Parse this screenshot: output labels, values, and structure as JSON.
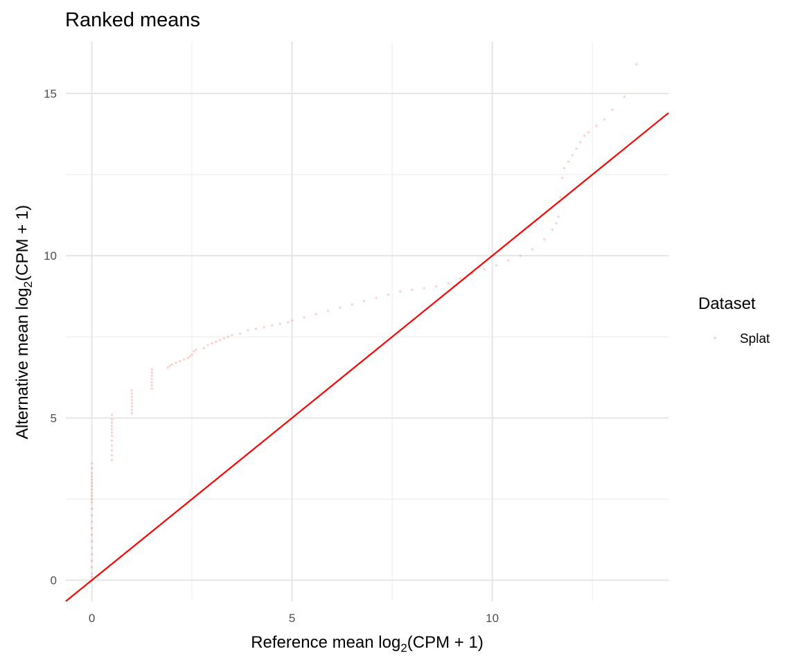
{
  "chart_data": {
    "type": "scatter",
    "title": "Ranked means",
    "xlabel": {
      "prefix": "Reference mean log",
      "sub": "2",
      "suffix": "(CPM + 1)"
    },
    "ylabel": {
      "prefix": "Alternative mean log",
      "sub": "2",
      "suffix": "(CPM + 1)"
    },
    "xlim": [
      -0.65,
      14.4
    ],
    "ylim": [
      -0.65,
      16.6
    ],
    "x_ticks": [
      0,
      5,
      10
    ],
    "y_ticks": [
      0,
      5,
      10,
      15
    ],
    "x_tick_labels": [
      "0",
      "5",
      "10"
    ],
    "y_tick_labels": [
      "0",
      "5",
      "10",
      "15"
    ],
    "x_minor": [
      2.5,
      7.5,
      12.5
    ],
    "y_minor": [
      2.5,
      7.5,
      12.5
    ],
    "grid": true,
    "legend": {
      "title": "Dataset",
      "position": "right",
      "entries": [
        "Splat"
      ]
    },
    "point_color": "#F8766D",
    "reference_line": {
      "slope": 1,
      "intercept": 0,
      "color": "#FF0000"
    },
    "series": [
      {
        "name": "Splat",
        "x": [
          0,
          0,
          0,
          0,
          0,
          0,
          0,
          0,
          0,
          0,
          0,
          0,
          0,
          0,
          0,
          0,
          0,
          0,
          0,
          0,
          0,
          0,
          0,
          0,
          0,
          0.5,
          0.5,
          0.5,
          0.5,
          0.5,
          0.5,
          0.5,
          0.5,
          0.5,
          0.5,
          0.5,
          0.5,
          1,
          1,
          1,
          1,
          1,
          1,
          1,
          1,
          1.5,
          1.5,
          1.5,
          1.5,
          1.5,
          1.5,
          1.5,
          1.9,
          1.95,
          2.0,
          2.1,
          2.2,
          2.3,
          2.4,
          2.45,
          2.5,
          2.55,
          2.6,
          2.8,
          2.9,
          3.0,
          3.1,
          3.2,
          3.3,
          3.4,
          3.5,
          3.7,
          3.9,
          4.1,
          4.3,
          4.5,
          4.7,
          4.9,
          5.0,
          5.3,
          5.6,
          5.9,
          6.2,
          6.5,
          6.8,
          7.1,
          7.4,
          7.7,
          8.0,
          8.3,
          8.6,
          8.9,
          9.2,
          9.5,
          9.8,
          10.1,
          10.4,
          10.7,
          11.0,
          11.3,
          11.5,
          11.6,
          11.65,
          11.7,
          11.75,
          11.8,
          11.9,
          12.0,
          12.1,
          12.2,
          12.3,
          12.4,
          12.6,
          12.8,
          13.0,
          13.3,
          13.6
        ],
        "y": [
          0,
          0.1,
          0.2,
          0.4,
          0.6,
          0.8,
          1.0,
          1.2,
          1.4,
          1.6,
          1.8,
          2.0,
          2.2,
          2.4,
          2.5,
          2.6,
          2.7,
          2.8,
          2.9,
          3.0,
          3.1,
          3.2,
          3.3,
          3.45,
          3.6,
          3.7,
          3.85,
          4.0,
          4.15,
          4.3,
          4.45,
          4.55,
          4.65,
          4.75,
          4.85,
          4.95,
          5.1,
          5.15,
          5.25,
          5.35,
          5.45,
          5.55,
          5.65,
          5.75,
          5.85,
          5.9,
          6.0,
          6.1,
          6.2,
          6.3,
          6.4,
          6.5,
          6.55,
          6.6,
          6.65,
          6.7,
          6.75,
          6.8,
          6.85,
          6.9,
          6.95,
          7.05,
          7.1,
          7.15,
          7.25,
          7.3,
          7.35,
          7.4,
          7.45,
          7.5,
          7.55,
          7.6,
          7.7,
          7.75,
          7.8,
          7.85,
          7.9,
          7.95,
          8.0,
          8.1,
          8.2,
          8.3,
          8.4,
          8.5,
          8.6,
          8.7,
          8.8,
          8.9,
          8.95,
          9.0,
          9.05,
          9.15,
          9.3,
          9.45,
          9.6,
          9.7,
          9.85,
          10.0,
          10.2,
          10.5,
          10.8,
          11.0,
          11.2,
          11.8,
          12.4,
          12.7,
          12.9,
          13.1,
          13.3,
          13.5,
          13.7,
          13.8,
          14.0,
          14.2,
          14.5,
          14.9,
          15.9
        ]
      }
    ]
  }
}
